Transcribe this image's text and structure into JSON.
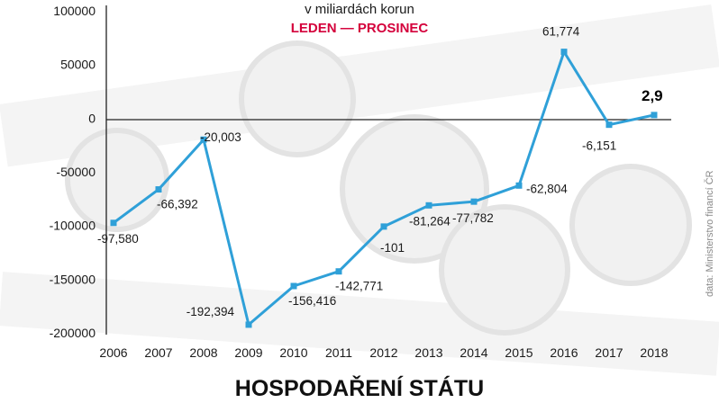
{
  "header": {
    "subtitle": "v miliardách korun",
    "period": "LEDEN — PROSINEC"
  },
  "footer": {
    "title": "HOSPODAŘENÍ STÁTU",
    "source": "data: Ministerstvo financí ČR"
  },
  "colors": {
    "series": "#2fa0d8",
    "period": "#d4003b"
  },
  "chart_data": {
    "type": "line",
    "title": "",
    "xlabel": "",
    "ylabel": "",
    "ylim": [
      -200000,
      100000
    ],
    "yticks": [
      "100000",
      "50000",
      "0",
      "-50000",
      "-100000",
      "-150000",
      "-200000"
    ],
    "grid": false,
    "categories": [
      "2006",
      "2007",
      "2008",
      "2009",
      "2010",
      "2011",
      "2012",
      "2013",
      "2014",
      "2015",
      "2016",
      "2017",
      "2018"
    ],
    "series": [
      {
        "values": [
          -97580,
          -66392,
          -20003,
          -192394,
          -156416,
          -142771,
          -101000,
          -81264,
          -77782,
          -62804,
          61774,
          -6151,
          2900
        ],
        "labels": [
          "-97,580",
          "-66,392",
          "-20,003",
          "-192,394",
          "-156,416",
          "-142,771",
          "-101",
          "-81,264",
          "-77,782",
          "-62,804",
          "61,774",
          "-6,151",
          "2,9"
        ]
      }
    ]
  }
}
